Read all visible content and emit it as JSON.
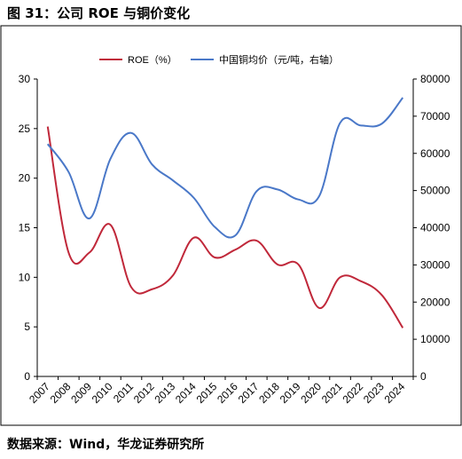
{
  "figure": {
    "title": "图 31：公司 ROE 与铜价变化",
    "source": "数据来源：Wind，华龙证券研究所"
  },
  "colors": {
    "roe": "#c0283a",
    "copper": "#4a78c8",
    "axis": "#000000",
    "border": "#000000"
  },
  "chart_data": {
    "type": "line",
    "categories": [
      "2007",
      "2008",
      "2009",
      "2010",
      "2011",
      "2012",
      "2013",
      "2014",
      "2015",
      "2016",
      "2017",
      "2018",
      "2019",
      "2020",
      "2021",
      "2022",
      "2023",
      "2024"
    ],
    "series": [
      {
        "name": "ROE（%）",
        "axis": "left",
        "values": [
          25.2,
          12.5,
          12.5,
          15.3,
          9.0,
          8.8,
          10.2,
          14.0,
          12.0,
          12.8,
          13.7,
          11.3,
          11.3,
          6.9,
          10.0,
          9.6,
          8.2,
          4.9
        ]
      },
      {
        "name": "中国铜均价（元/吨，右轴）",
        "axis": "right",
        "values": [
          62500,
          55000,
          42500,
          58500,
          65500,
          57000,
          52700,
          48000,
          40200,
          38000,
          49800,
          50300,
          47600,
          48500,
          68200,
          67500,
          68000,
          75000
        ]
      }
    ],
    "y_left": {
      "min": 0,
      "max": 30,
      "ticks": [
        0,
        5,
        10,
        15,
        20,
        25,
        30
      ]
    },
    "y_right": {
      "min": 0,
      "max": 80000,
      "ticks": [
        0,
        10000,
        20000,
        30000,
        40000,
        50000,
        60000,
        70000,
        80000
      ]
    },
    "grid": false,
    "legend_position": "top"
  }
}
